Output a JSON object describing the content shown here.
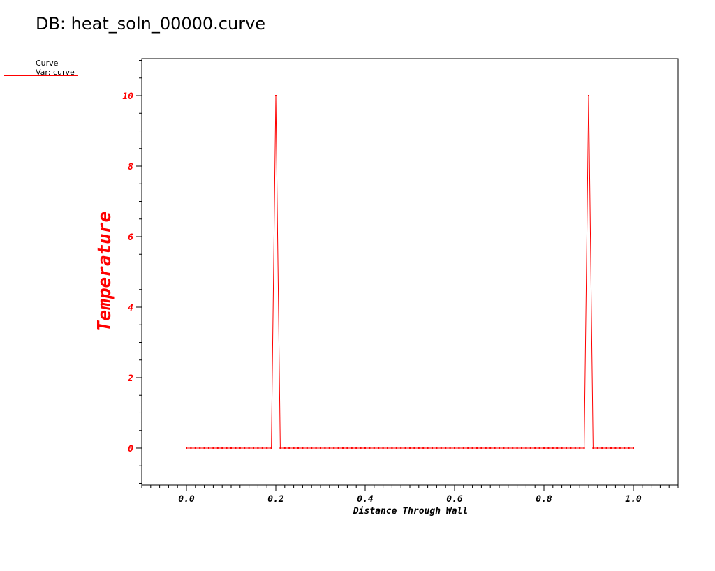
{
  "header": {
    "title": "DB: heat_soln_00000.curve"
  },
  "legend": {
    "name": "Curve",
    "var": "Var: curve",
    "color": "#ff0000"
  },
  "chart_data": {
    "type": "line",
    "xlabel": "Distance Through Wall",
    "ylabel": "Temperature",
    "xlim": [
      -0.1,
      1.1
    ],
    "ylim": [
      -1.05,
      11.05
    ],
    "x_ticks": [
      {
        "value": 0.0,
        "label": "0.0"
      },
      {
        "value": 0.2,
        "label": "0.2"
      },
      {
        "value": 0.4,
        "label": "0.4"
      },
      {
        "value": 0.6,
        "label": "0.6"
      },
      {
        "value": 0.8,
        "label": "0.8"
      },
      {
        "value": 1.0,
        "label": "1.0"
      }
    ],
    "y_ticks": [
      {
        "value": 0,
        "label": "0"
      },
      {
        "value": 2,
        "label": "2"
      },
      {
        "value": 4,
        "label": "4"
      },
      {
        "value": 6,
        "label": "6"
      },
      {
        "value": 8,
        "label": "8"
      },
      {
        "value": 10,
        "label": "10"
      }
    ],
    "series": [
      {
        "name": "curve",
        "color": "#ff0000",
        "x_start": 0.0,
        "x_step": 0.01,
        "values": [
          0,
          0,
          0,
          0,
          0,
          0,
          0,
          0,
          0,
          0,
          0,
          0,
          0,
          0,
          0,
          0,
          0,
          0,
          0,
          0,
          10,
          0,
          0,
          0,
          0,
          0,
          0,
          0,
          0,
          0,
          0,
          0,
          0,
          0,
          0,
          0,
          0,
          0,
          0,
          0,
          0,
          0,
          0,
          0,
          0,
          0,
          0,
          0,
          0,
          0,
          0,
          0,
          0,
          0,
          0,
          0,
          0,
          0,
          0,
          0,
          0,
          0,
          0,
          0,
          0,
          0,
          0,
          0,
          0,
          0,
          0,
          0,
          0,
          0,
          0,
          0,
          0,
          0,
          0,
          0,
          0,
          0,
          0,
          0,
          0,
          0,
          0,
          0,
          0,
          0,
          10,
          0,
          0,
          0,
          0,
          0,
          0,
          0,
          0,
          0,
          0
        ]
      }
    ],
    "grid": false,
    "axis_color": "#000000",
    "label_color": "#ff0000"
  }
}
